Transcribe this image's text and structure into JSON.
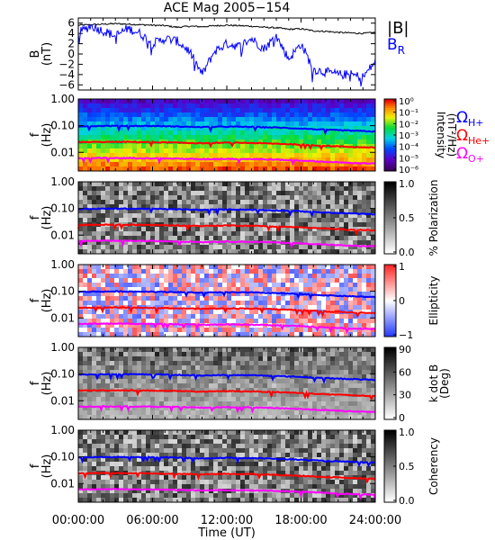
{
  "title": "ACE Mag 2005−154",
  "xlabel": "Time (UT)",
  "x_ticks": [
    "00:00:00",
    "06:00:00",
    "12:00:00",
    "18:00:00",
    "24:00:00"
  ],
  "chart_data": [
    {
      "type": "line",
      "ylabel": "B",
      "yunit": "(nT)",
      "ylim": [
        -7,
        7
      ],
      "y_ticks": [
        "6",
        "4",
        "2",
        "0",
        "−2",
        "−4",
        "−6"
      ],
      "y_tick_values": [
        6,
        4,
        2,
        0,
        -2,
        -4,
        -6
      ],
      "x_hours": [
        0,
        1,
        2,
        3,
        4,
        5,
        6,
        7,
        8,
        9,
        10,
        11,
        12,
        13,
        14,
        15,
        16,
        17,
        18,
        19,
        20,
        21,
        22,
        23,
        24
      ],
      "series": [
        {
          "name": "|B|",
          "color": "#000000",
          "values": [
            5.6,
            5.7,
            5.8,
            5.9,
            5.8,
            5.7,
            5.6,
            5.5,
            5.2,
            5.4,
            5.3,
            5.5,
            5.6,
            5.5,
            5.4,
            5.2,
            5.1,
            4.8,
            4.9,
            4.5,
            4.4,
            4.2,
            4.1,
            4.0,
            4.2
          ]
        },
        {
          "name": "B",
          "subscript": "R",
          "color": "#0000ff",
          "values": [
            4.0,
            5.5,
            4.5,
            3.5,
            5.0,
            4.0,
            2.0,
            3.0,
            2.5,
            0.5,
            -4.0,
            0.5,
            2.0,
            1.5,
            3.0,
            1.0,
            3.5,
            -1.0,
            2.0,
            -3.0,
            -3.5,
            -4.0,
            -4.0,
            -4.5,
            -1.5
          ]
        }
      ]
    },
    {
      "type": "heatmap",
      "ylabel": "f",
      "yunit": "(Hz)",
      "y_ticks": [
        "1.00",
        "0.10",
        "0.01"
      ],
      "colorbar": {
        "label": "Intensity",
        "unit": "(nT²/Hz)",
        "ticks": [
          "10⁰",
          "10⁻¹",
          "10⁻²",
          "10⁻³",
          "10⁻⁴",
          "10⁻⁵",
          "10⁻⁶"
        ],
        "colormap": "rainbow"
      },
      "overlays": [
        {
          "name": "Ω",
          "subscript": "H+",
          "color": "#0000ff"
        },
        {
          "name": "Ω",
          "subscript": "He+",
          "color": "#ff0000"
        },
        {
          "name": "Ω",
          "subscript": "O+",
          "color": "#ff00ff"
        }
      ]
    },
    {
      "type": "heatmap",
      "ylabel": "f",
      "yunit": "(Hz)",
      "y_ticks": [
        "1.00",
        "0.10",
        "0.01"
      ],
      "colorbar": {
        "label": "% Polarization",
        "unit": "",
        "ticks": [
          "1.0",
          "0.5",
          "0.0"
        ],
        "colormap": "gray"
      }
    },
    {
      "type": "heatmap",
      "ylabel": "f",
      "yunit": "(Hz)",
      "y_ticks": [
        "1.00",
        "0.10",
        "0.01"
      ],
      "colorbar": {
        "label": "Ellipticity",
        "unit": "",
        "ticks": [
          "1",
          "0",
          "−1"
        ],
        "colormap": "blue-white-red"
      }
    },
    {
      "type": "heatmap",
      "ylabel": "f",
      "yunit": "(Hz)",
      "y_ticks": [
        "1.00",
        "0.10",
        "0.01"
      ],
      "colorbar": {
        "label": "k dot B",
        "unit": "(Deg)",
        "ticks": [
          "90",
          "60",
          "30",
          "0"
        ],
        "colormap": "gray"
      }
    },
    {
      "type": "heatmap",
      "ylabel": "f",
      "yunit": "(Hz)",
      "y_ticks": [
        "1.00",
        "0.10",
        "0.01"
      ],
      "colorbar": {
        "label": "Coherency",
        "unit": "",
        "ticks": [
          "1.0",
          "0.5",
          "0.0"
        ],
        "colormap": "gray"
      }
    }
  ],
  "gyrofrequency_hz": {
    "x_hours": [
      0,
      2,
      4,
      6,
      8,
      10,
      12,
      14,
      16,
      18,
      20,
      22,
      24
    ],
    "H+": [
      0.095,
      0.098,
      0.098,
      0.097,
      0.093,
      0.088,
      0.092,
      0.09,
      0.085,
      0.078,
      0.07,
      0.065,
      0.06
    ],
    "He+": [
      0.024,
      0.0245,
      0.0245,
      0.024,
      0.023,
      0.022,
      0.023,
      0.0225,
      0.021,
      0.0195,
      0.0175,
      0.016,
      0.015
    ],
    "O+": [
      0.006,
      0.0061,
      0.0061,
      0.006,
      0.0058,
      0.0055,
      0.0057,
      0.0056,
      0.0053,
      0.0049,
      0.0044,
      0.004,
      0.0038
    ]
  }
}
